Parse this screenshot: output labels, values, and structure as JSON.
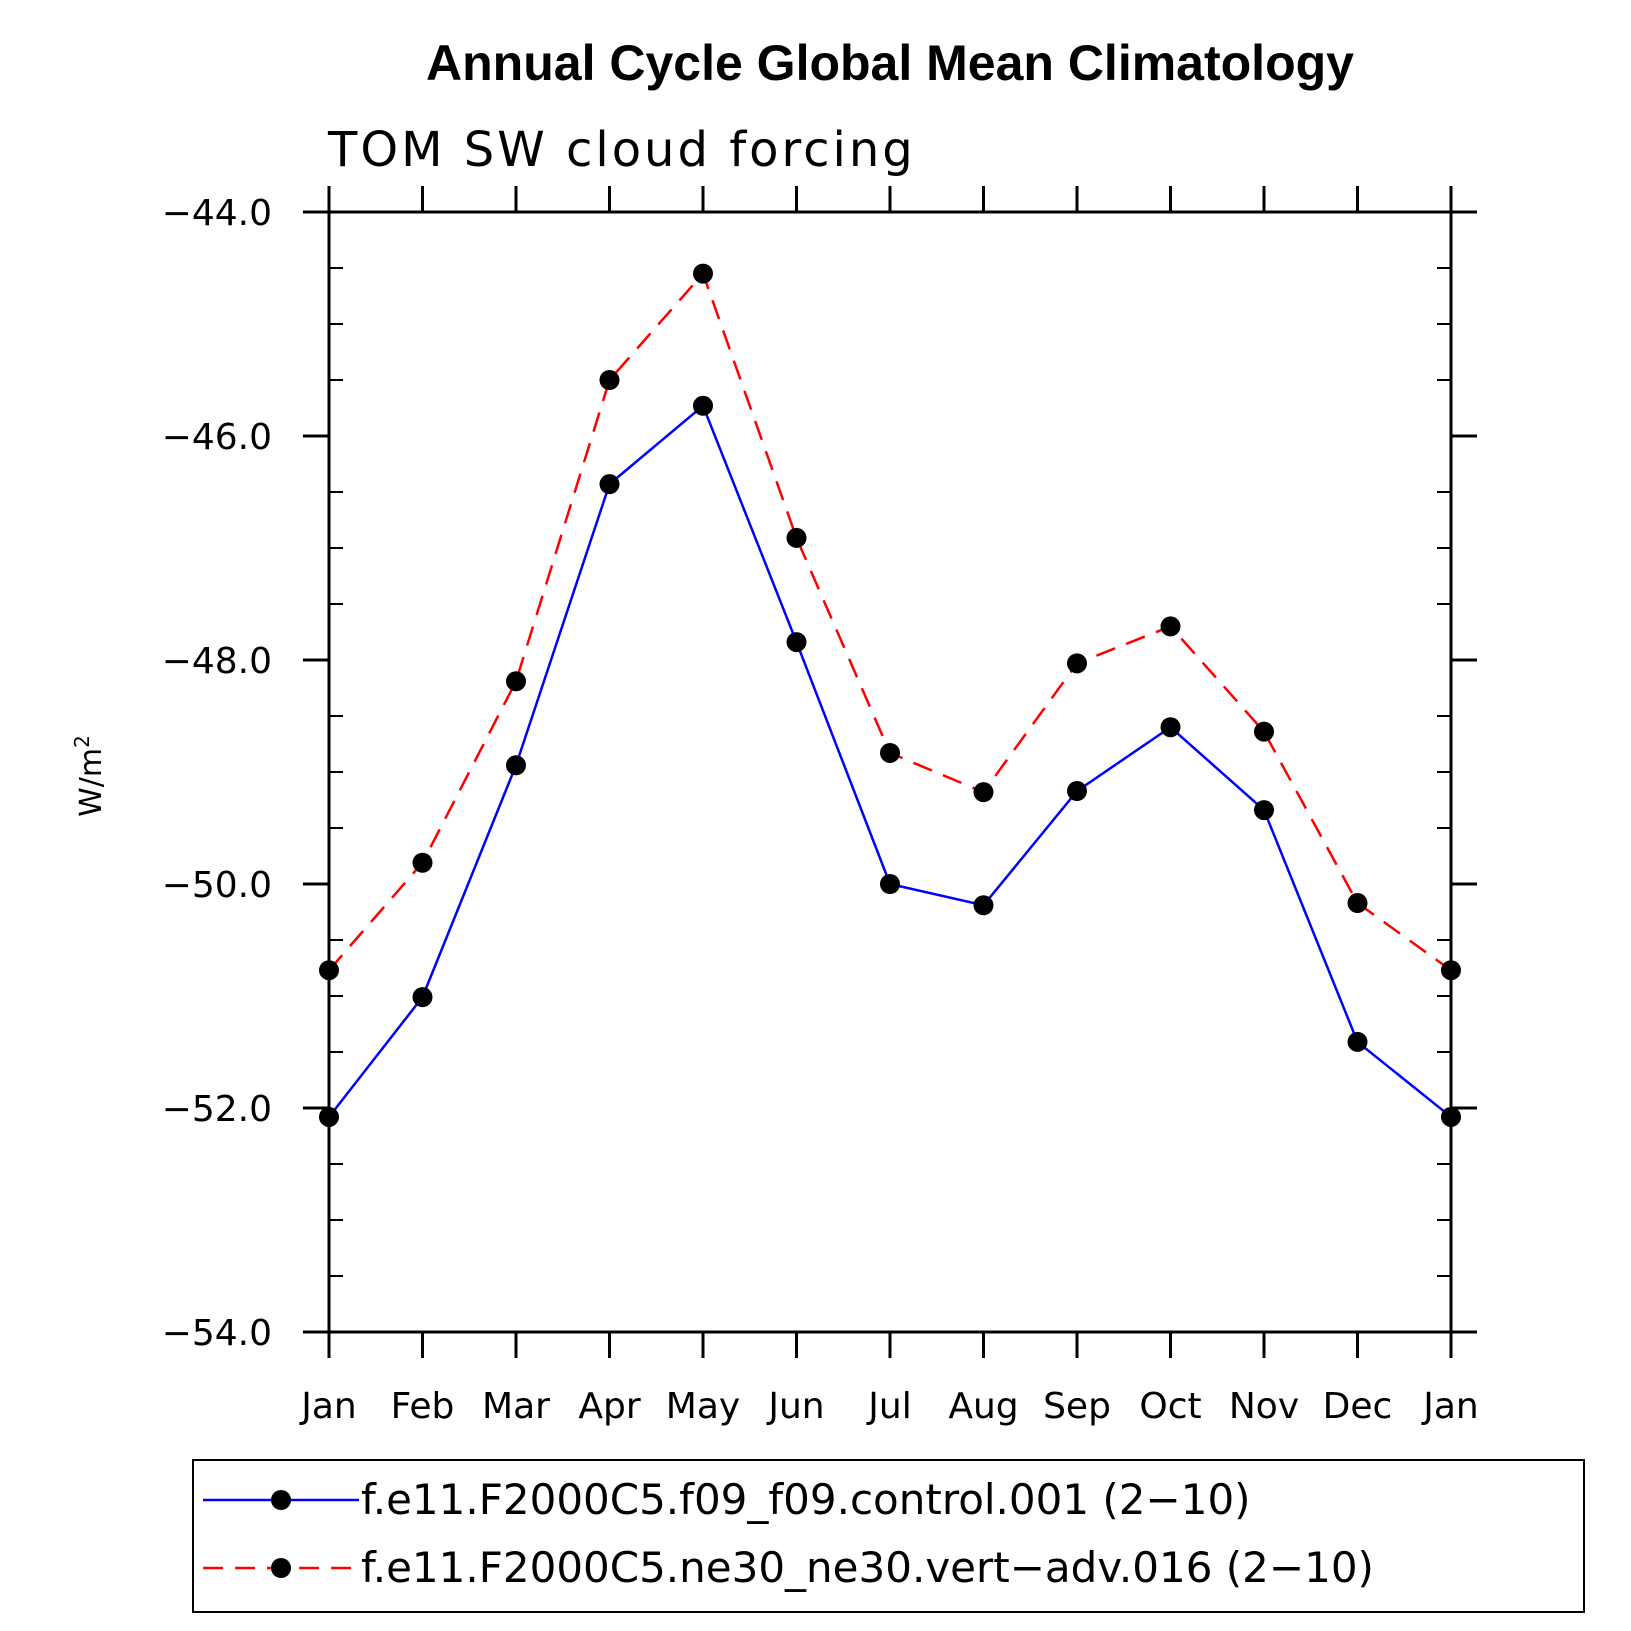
{
  "chart_data": {
    "type": "line",
    "title": "Annual Cycle Global Mean Climatology",
    "subtitle": "TOM SW cloud forcing",
    "ylabel_base": "W/m",
    "ylabel_sup": "2",
    "xlabel": "",
    "categories": [
      "Jan",
      "Feb",
      "Mar",
      "Apr",
      "May",
      "Jun",
      "Jul",
      "Aug",
      "Sep",
      "Oct",
      "Nov",
      "Dec",
      "Jan"
    ],
    "ylim": [
      -54.0,
      -44.0
    ],
    "yticks": [
      -54.0,
      -52.0,
      -50.0,
      -48.0,
      -46.0,
      -44.0
    ],
    "ytick_labels": [
      "−54.0",
      "−52.0",
      "−50.0",
      "−48.0",
      "−46.0",
      "−44.0"
    ],
    "minor_ytick_step": 0.5,
    "grid": false,
    "legend_position": "bottom",
    "series": [
      {
        "name": "f.e11.F2000C5.f09_f09.control.001 (2−10)",
        "color": "#0000ff",
        "style": "solid",
        "marker": "filled-circle",
        "values": [
          -52.08,
          -51.01,
          -48.94,
          -46.43,
          -45.73,
          -47.84,
          -50.0,
          -50.19,
          -49.17,
          -48.6,
          -49.34,
          -51.41,
          -52.08
        ]
      },
      {
        "name": "f.e11.F2000C5.ne30_ne30.vert−adv.016 (2−10)",
        "color": "#ff0000",
        "style": "dashed",
        "marker": "filled-circle",
        "values": [
          -50.77,
          -49.81,
          -48.19,
          -45.5,
          -44.55,
          -46.91,
          -48.83,
          -49.18,
          -48.03,
          -47.7,
          -48.64,
          -50.17,
          -50.77
        ]
      }
    ]
  }
}
